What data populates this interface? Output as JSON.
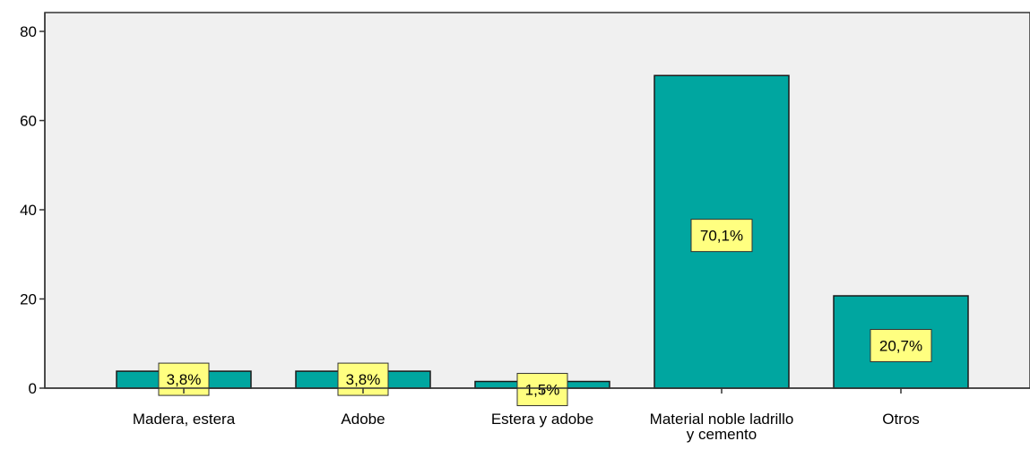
{
  "chart_data": {
    "type": "bar",
    "categories": [
      [
        "Madera, estera"
      ],
      [
        "Adobe"
      ],
      [
        "Estera y adobe"
      ],
      [
        "Material noble ladrillo",
        "y cemento"
      ],
      [
        "Otros"
      ]
    ],
    "values": [
      3.8,
      3.8,
      1.5,
      70.1,
      20.7
    ],
    "data_labels": [
      "3,8%",
      "3,8%",
      "1,5%",
      "70,1%",
      "20,7%"
    ],
    "ylim": [
      0,
      82
    ],
    "yticks": [
      0,
      20,
      40,
      60,
      80
    ],
    "title": "",
    "xlabel": "",
    "ylabel": "",
    "grid": false,
    "colors": {
      "plot_background": "#f0f0f0",
      "bar_fill": "#00a6a0",
      "bar_stroke": "#1a1a1a",
      "label_fill": "#ffff80",
      "label_stroke": "#333333",
      "axis": "#333333"
    }
  }
}
